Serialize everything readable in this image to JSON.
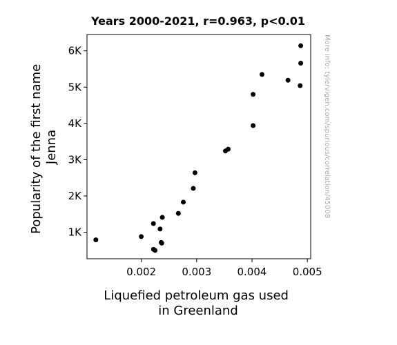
{
  "chart_data": {
    "type": "scatter",
    "title": "Years 2000-2021, r=0.963, p<0.01",
    "xlabel_lines": [
      "Liquefied petroleum gas used",
      "in Greenland"
    ],
    "ylabel_lines": [
      "Popularity of the first name",
      "Jenna"
    ],
    "watermark": "More info: tylervigen.com/spurious/correlation/45008",
    "xlim": [
      0.00102,
      0.00506
    ],
    "ylim": [
      270,
      6450
    ],
    "xticks": [
      {
        "value": 0.002,
        "label": "0.002"
      },
      {
        "value": 0.003,
        "label": "0.003"
      },
      {
        "value": 0.004,
        "label": "0.004"
      },
      {
        "value": 0.005,
        "label": "0.005"
      }
    ],
    "yticks": [
      {
        "value": 1000,
        "label": "1K"
      },
      {
        "value": 2000,
        "label": "2K"
      },
      {
        "value": 3000,
        "label": "3K"
      },
      {
        "value": 4000,
        "label": "4K"
      },
      {
        "value": 5000,
        "label": "5K"
      },
      {
        "value": 6000,
        "label": "6K"
      }
    ],
    "points": [
      {
        "x": 0.00118,
        "y": 790
      },
      {
        "x": 0.002,
        "y": 880
      },
      {
        "x": 0.00222,
        "y": 530
      },
      {
        "x": 0.00225,
        "y": 500
      },
      {
        "x": 0.00222,
        "y": 1240
      },
      {
        "x": 0.00234,
        "y": 1090
      },
      {
        "x": 0.00236,
        "y": 720
      },
      {
        "x": 0.00237,
        "y": 700
      },
      {
        "x": 0.00238,
        "y": 1410
      },
      {
        "x": 0.00267,
        "y": 1520
      },
      {
        "x": 0.00276,
        "y": 1830
      },
      {
        "x": 0.00294,
        "y": 2210
      },
      {
        "x": 0.00297,
        "y": 2640
      },
      {
        "x": 0.00352,
        "y": 3240
      },
      {
        "x": 0.00357,
        "y": 3290
      },
      {
        "x": 0.00402,
        "y": 4800
      },
      {
        "x": 0.00402,
        "y": 3940
      },
      {
        "x": 0.00418,
        "y": 5350
      },
      {
        "x": 0.00465,
        "y": 5190
      },
      {
        "x": 0.00487,
        "y": 5040
      },
      {
        "x": 0.00488,
        "y": 5660
      },
      {
        "x": 0.00488,
        "y": 6140
      }
    ],
    "marker_color": "#000000",
    "grid": false,
    "legend": "none"
  }
}
